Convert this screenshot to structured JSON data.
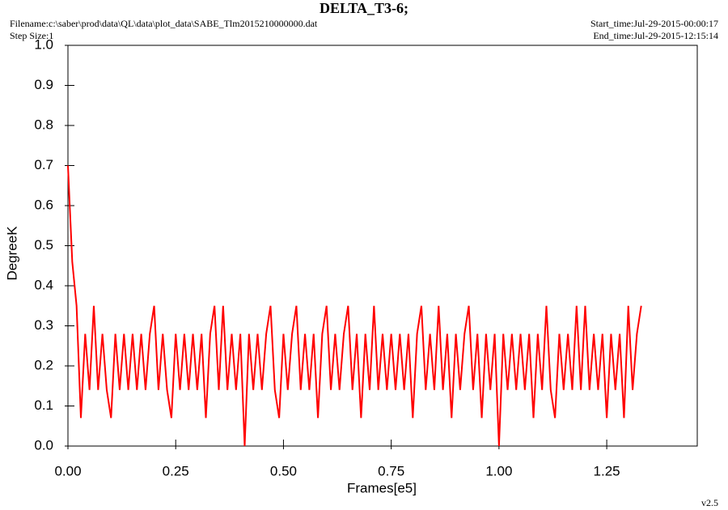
{
  "chart_data": {
    "type": "line",
    "title": "DELTA_T3-6;",
    "filename": "Filename:c:\\saber\\prod\\data\\QL\\data\\plot_data\\SABE_Tlm2015210000000.dat",
    "step_size": "Step Size:1",
    "start_time": "Start_time:Jul-29-2015-00:00:17",
    "end_time": "End_time:Jul-29-2015-12:15:14",
    "xlabel": "Frames[e5]",
    "ylabel": "DegreeK",
    "version": "v2.5",
    "xlim": [
      0,
      1.46
    ],
    "ylim": [
      0,
      1
    ],
    "xticks": [
      {
        "value": 0,
        "label": "0.00"
      },
      {
        "value": 0.25,
        "label": "0.25"
      },
      {
        "value": 0.5,
        "label": "0.50"
      },
      {
        "value": 0.75,
        "label": "0.75"
      },
      {
        "value": 1,
        "label": "1.00"
      },
      {
        "value": 1.25,
        "label": "1.25"
      }
    ],
    "yticks": [
      {
        "value": 0,
        "label": "0.0"
      },
      0.1,
      0.2,
      0.3,
      0.4,
      0.5,
      0.6,
      0.7,
      0.8,
      0.9,
      {
        "value": 1,
        "label": "1.0"
      }
    ],
    "series": [
      {
        "color": "#ff0000",
        "x": [
          0,
          0.01,
          0.02,
          0.03,
          0.04,
          0.05,
          0.06,
          0.07,
          0.08,
          0.09,
          0.1,
          0.11,
          0.12,
          0.13,
          0.14,
          0.15,
          0.16,
          0.17,
          0.18,
          0.19,
          0.2,
          0.21,
          0.22,
          0.23,
          0.24,
          0.25,
          0.26,
          0.27,
          0.28,
          0.29,
          0.3,
          0.31,
          0.32,
          0.33,
          0.34,
          0.35,
          0.36,
          0.37,
          0.38,
          0.39,
          0.4,
          0.41,
          0.42,
          0.43,
          0.44,
          0.45,
          0.46,
          0.47,
          0.48,
          0.49,
          0.5,
          0.51,
          0.52,
          0.53,
          0.54,
          0.55,
          0.56,
          0.57,
          0.58,
          0.59,
          0.6,
          0.61,
          0.62,
          0.63,
          0.64,
          0.65,
          0.66,
          0.67,
          0.68,
          0.69,
          0.7,
          0.71,
          0.72,
          0.73,
          0.74,
          0.75,
          0.76,
          0.77,
          0.78,
          0.79,
          0.8,
          0.81,
          0.82,
          0.83,
          0.84,
          0.85,
          0.86,
          0.87,
          0.88,
          0.89,
          0.9,
          0.91,
          0.92,
          0.93,
          0.94,
          0.95,
          0.96,
          0.97,
          0.98,
          0.99,
          1,
          1.01,
          1.02,
          1.03,
          1.04,
          1.05,
          1.06,
          1.07,
          1.08,
          1.09,
          1.1,
          1.11,
          1.12,
          1.13,
          1.14,
          1.15,
          1.16,
          1.17,
          1.18,
          1.19,
          1.2,
          1.21,
          1.22,
          1.23,
          1.24,
          1.25,
          1.26,
          1.27,
          1.28,
          1.29,
          1.3,
          1.31,
          1.32,
          1.33
        ],
        "values": [
          0.7,
          0.46,
          0.35,
          0.07,
          0.28,
          0.14,
          0.35,
          0.14,
          0.28,
          0.14,
          0.07,
          0.28,
          0.14,
          0.28,
          0.14,
          0.28,
          0.14,
          0.28,
          0.14,
          0.28,
          0.35,
          0.14,
          0.28,
          0.14,
          0.07,
          0.28,
          0.14,
          0.28,
          0.14,
          0.28,
          0.14,
          0.28,
          0.07,
          0.28,
          0.35,
          0.14,
          0.35,
          0.14,
          0.28,
          0.14,
          0.28,
          0.0,
          0.28,
          0.14,
          0.28,
          0.14,
          0.28,
          0.35,
          0.14,
          0.07,
          0.28,
          0.14,
          0.28,
          0.35,
          0.14,
          0.28,
          0.14,
          0.28,
          0.07,
          0.28,
          0.35,
          0.14,
          0.28,
          0.14,
          0.28,
          0.35,
          0.14,
          0.28,
          0.07,
          0.28,
          0.14,
          0.35,
          0.14,
          0.28,
          0.14,
          0.28,
          0.14,
          0.28,
          0.14,
          0.28,
          0.07,
          0.28,
          0.35,
          0.14,
          0.28,
          0.14,
          0.35,
          0.14,
          0.28,
          0.07,
          0.28,
          0.14,
          0.28,
          0.35,
          0.14,
          0.28,
          0.07,
          0.28,
          0.14,
          0.28,
          0.0,
          0.28,
          0.14,
          0.28,
          0.14,
          0.28,
          0.14,
          0.28,
          0.07,
          0.28,
          0.14,
          0.35,
          0.14,
          0.07,
          0.28,
          0.14,
          0.28,
          0.14,
          0.35,
          0.14,
          0.35,
          0.14,
          0.28,
          0.14,
          0.28,
          0.07,
          0.28,
          0.14,
          0.28,
          0.07,
          0.35,
          0.14,
          0.28,
          0.35
        ]
      }
    ]
  }
}
